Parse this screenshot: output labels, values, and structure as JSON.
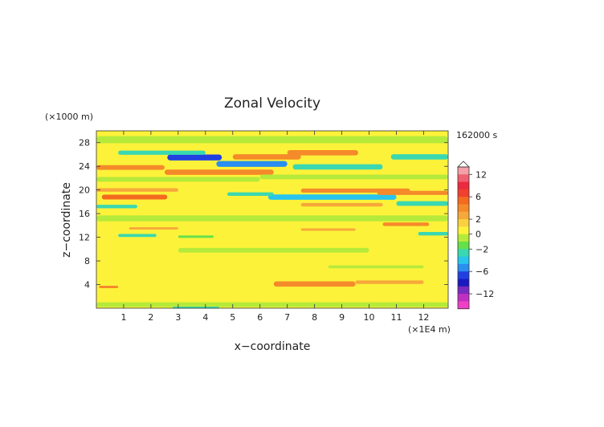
{
  "chart_data": {
    "type": "heatmap",
    "title": "Zonal Velocity",
    "xlabel": "x−coordinate",
    "ylabel": "z−coordinate",
    "x_unit": "(×1E4 m)",
    "y_unit": "(×1000 m)",
    "time_label": "162000 s",
    "xlim": [
      0,
      12.9
    ],
    "ylim": [
      0,
      30
    ],
    "x_ticks": [
      1,
      2,
      3,
      4,
      5,
      6,
      7,
      8,
      9,
      10,
      11,
      12
    ],
    "x_tick_labels": [
      "1",
      "2",
      "3",
      "4",
      "5",
      "6",
      "7",
      "8",
      "9",
      "10",
      "11",
      "12"
    ],
    "y_ticks": [
      4,
      8,
      12,
      16,
      20,
      24,
      28
    ],
    "y_tick_labels": [
      "4",
      "8",
      "12",
      "16",
      "20",
      "24",
      "28"
    ],
    "colorbar": {
      "tick_values": [
        12,
        6,
        2,
        0,
        -2,
        -6,
        -12
      ],
      "tick_labels": [
        "12",
        "6",
        "2",
        "0",
        "−2",
        "−6",
        "−12"
      ],
      "levels": [
        {
          "lo": 12,
          "hi": 14,
          "color": "#f4a0a8"
        },
        {
          "lo": 10,
          "hi": 12,
          "color": "#f06070"
        },
        {
          "lo": 8,
          "hi": 10,
          "color": "#ee2a3e"
        },
        {
          "lo": 6,
          "hi": 8,
          "color": "#f04030"
        },
        {
          "lo": 4,
          "hi": 6,
          "color": "#f46a20"
        },
        {
          "lo": 3,
          "hi": 4,
          "color": "#f58a2a"
        },
        {
          "lo": 2,
          "hi": 3,
          "color": "#f7a83a"
        },
        {
          "lo": 1,
          "hi": 2,
          "color": "#fad040"
        },
        {
          "lo": 0,
          "hi": 1,
          "color": "#fdf23a"
        },
        {
          "lo": -1,
          "hi": 0,
          "color": "#b6ea3a"
        },
        {
          "lo": -2,
          "hi": -1,
          "color": "#66e04a"
        },
        {
          "lo": -3,
          "hi": -2,
          "color": "#3ad8b0"
        },
        {
          "lo": -4,
          "hi": -3,
          "color": "#28c4ec"
        },
        {
          "lo": -6,
          "hi": -4,
          "color": "#2a8ef0"
        },
        {
          "lo": -8,
          "hi": -6,
          "color": "#2240e0"
        },
        {
          "lo": -10,
          "hi": -8,
          "color": "#1a1ac0"
        },
        {
          "lo": -12,
          "hi": -10,
          "color": "#7a2ac0"
        },
        {
          "lo": -14,
          "hi": -12,
          "color": "#c030c0"
        },
        {
          "lo": -16,
          "hi": -14,
          "color": "#f040c8"
        }
      ]
    },
    "features": [
      {
        "x0": 2.6,
        "x1": 4.6,
        "z": 25.5,
        "thickness": 1.0,
        "value": -7
      },
      {
        "x0": 0.8,
        "x1": 4.0,
        "z": 26.3,
        "thickness": 0.7,
        "value": -3
      },
      {
        "x0": 4.4,
        "x1": 7.0,
        "z": 24.4,
        "thickness": 1.0,
        "value": -5
      },
      {
        "x0": 7.2,
        "x1": 10.5,
        "z": 23.9,
        "thickness": 0.9,
        "value": -3
      },
      {
        "x0": 10.8,
        "x1": 12.9,
        "z": 25.6,
        "thickness": 0.9,
        "value": -3
      },
      {
        "x0": 7.0,
        "x1": 9.6,
        "z": 26.3,
        "thickness": 0.9,
        "value": 3
      },
      {
        "x0": 5.0,
        "x1": 7.5,
        "z": 25.6,
        "thickness": 0.9,
        "value": 3
      },
      {
        "x0": 0.0,
        "x1": 2.5,
        "z": 23.8,
        "thickness": 0.8,
        "value": 3
      },
      {
        "x0": 2.5,
        "x1": 6.5,
        "z": 23.0,
        "thickness": 0.9,
        "value": 3
      },
      {
        "x0": 0.2,
        "x1": 2.6,
        "z": 18.8,
        "thickness": 0.8,
        "value": 4
      },
      {
        "x0": 0.0,
        "x1": 3.0,
        "z": 20.0,
        "thickness": 0.6,
        "value": 2
      },
      {
        "x0": 6.3,
        "x1": 11.0,
        "z": 18.8,
        "thickness": 0.9,
        "value": -4
      },
      {
        "x0": 4.8,
        "x1": 6.5,
        "z": 19.3,
        "thickness": 0.6,
        "value": -3
      },
      {
        "x0": 11.0,
        "x1": 12.9,
        "z": 17.7,
        "thickness": 0.8,
        "value": -3
      },
      {
        "x0": 0.0,
        "x1": 1.5,
        "z": 17.2,
        "thickness": 0.6,
        "value": -3
      },
      {
        "x0": 7.5,
        "x1": 11.5,
        "z": 19.9,
        "thickness": 0.7,
        "value": 3
      },
      {
        "x0": 10.3,
        "x1": 12.9,
        "z": 19.5,
        "thickness": 0.7,
        "value": 3
      },
      {
        "x0": 7.5,
        "x1": 10.5,
        "z": 17.5,
        "thickness": 0.6,
        "value": 2
      },
      {
        "x0": 0.8,
        "x1": 2.2,
        "z": 12.3,
        "thickness": 0.5,
        "value": -3
      },
      {
        "x0": 3.0,
        "x1": 4.3,
        "z": 12.1,
        "thickness": 0.4,
        "value": -2
      },
      {
        "x0": 11.8,
        "x1": 12.9,
        "z": 12.6,
        "thickness": 0.6,
        "value": -3
      },
      {
        "x0": 1.2,
        "x1": 3.0,
        "z": 13.5,
        "thickness": 0.4,
        "value": 2
      },
      {
        "x0": 10.5,
        "x1": 12.2,
        "z": 14.2,
        "thickness": 0.6,
        "value": 3
      },
      {
        "x0": 7.5,
        "x1": 9.5,
        "z": 13.3,
        "thickness": 0.4,
        "value": 2
      },
      {
        "x0": 6.5,
        "x1": 9.5,
        "z": 4.1,
        "thickness": 0.9,
        "value": 3
      },
      {
        "x0": 9.5,
        "x1": 12.0,
        "z": 4.4,
        "thickness": 0.6,
        "value": 2
      },
      {
        "x0": 0.1,
        "x1": 0.8,
        "z": 3.6,
        "thickness": 0.4,
        "value": 3
      },
      {
        "x0": 8.5,
        "x1": 12.0,
        "z": 7.0,
        "thickness": 0.5,
        "value": -1
      },
      {
        "x0": 3.0,
        "x1": 10.0,
        "z": 9.8,
        "thickness": 0.8,
        "value": -1
      },
      {
        "x0": 0.0,
        "x1": 12.9,
        "z": 15.2,
        "thickness": 1.0,
        "value": -1
      },
      {
        "x0": 0.0,
        "x1": 6.0,
        "z": 21.8,
        "thickness": 0.8,
        "value": -1
      },
      {
        "x0": 6.0,
        "x1": 12.9,
        "z": 22.2,
        "thickness": 0.8,
        "value": -1
      },
      {
        "x0": 0.0,
        "x1": 12.9,
        "z": 28.5,
        "thickness": 1.2,
        "value": -1
      },
      {
        "x0": 0.0,
        "x1": 12.9,
        "z": 0.6,
        "thickness": 0.8,
        "value": -1
      },
      {
        "x0": 2.8,
        "x1": 4.5,
        "z": 0.1,
        "thickness": 0.3,
        "value": -3
      }
    ]
  }
}
